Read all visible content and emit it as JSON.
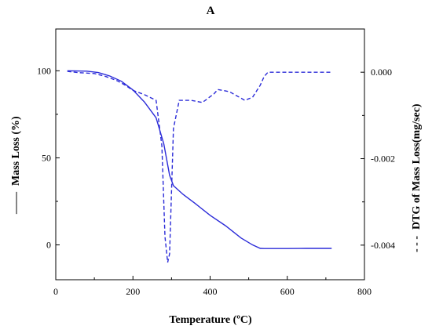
{
  "chart_data": {
    "type": "line",
    "title": "A",
    "xlabel": "Temperature (ºC)",
    "ylabel_left": "Mass Loss (%)",
    "ylabel_right": "DTG of Mass Loss(mg/sec)",
    "left_legend_glyph": "——",
    "right_legend_glyph": "- - -",
    "xlim": [
      0,
      800
    ],
    "ylim_left": [
      -20,
      124
    ],
    "ylim_right": [
      -0.0048,
      0.001
    ],
    "x_ticks": [
      0,
      200,
      400,
      600,
      800
    ],
    "y_ticks_left": [
      0,
      50,
      100
    ],
    "y_ticks_right": [
      0.0,
      -0.002,
      -0.004
    ],
    "y_tick_labels_right": [
      "0.000",
      "-0.002",
      "-0.004"
    ],
    "line_color": "#2b2bd8",
    "series": [
      {
        "axis": "left",
        "style": "solid",
        "x": [
          30,
          80,
          110,
          140,
          170,
          200,
          230,
          260,
          280,
          295,
          305,
          330,
          360,
          400,
          440,
          480,
          510,
          530,
          540,
          600,
          650,
          715
        ],
        "y": [
          100,
          99.8,
          99,
          97,
          94,
          89,
          82,
          73,
          58,
          40,
          34,
          29,
          24,
          17,
          11,
          4,
          0,
          -2,
          -2.1,
          -2.1,
          -2,
          -2
        ]
      },
      {
        "axis": "right",
        "style": "dashed",
        "x": [
          30,
          60,
          100,
          130,
          160,
          180,
          200,
          230,
          260,
          275,
          283,
          290,
          295,
          305,
          320,
          350,
          380,
          395,
          410,
          420,
          450,
          490,
          510,
          530,
          540,
          550,
          600,
          650,
          715
        ],
        "y": [
          2e-05,
          -1e-05,
          -3e-05,
          -0.0001,
          -0.0002,
          -0.0003,
          -0.00042,
          -0.00052,
          -0.00065,
          -0.0017,
          -0.0038,
          -0.0044,
          -0.0042,
          -0.0013,
          -0.00065,
          -0.00065,
          -0.0007,
          -0.0006,
          -0.0005,
          -0.0004,
          -0.00045,
          -0.00065,
          -0.00058,
          -0.0003,
          -0.0001,
          0.0,
          0.0,
          0.0,
          0.0
        ]
      }
    ]
  }
}
